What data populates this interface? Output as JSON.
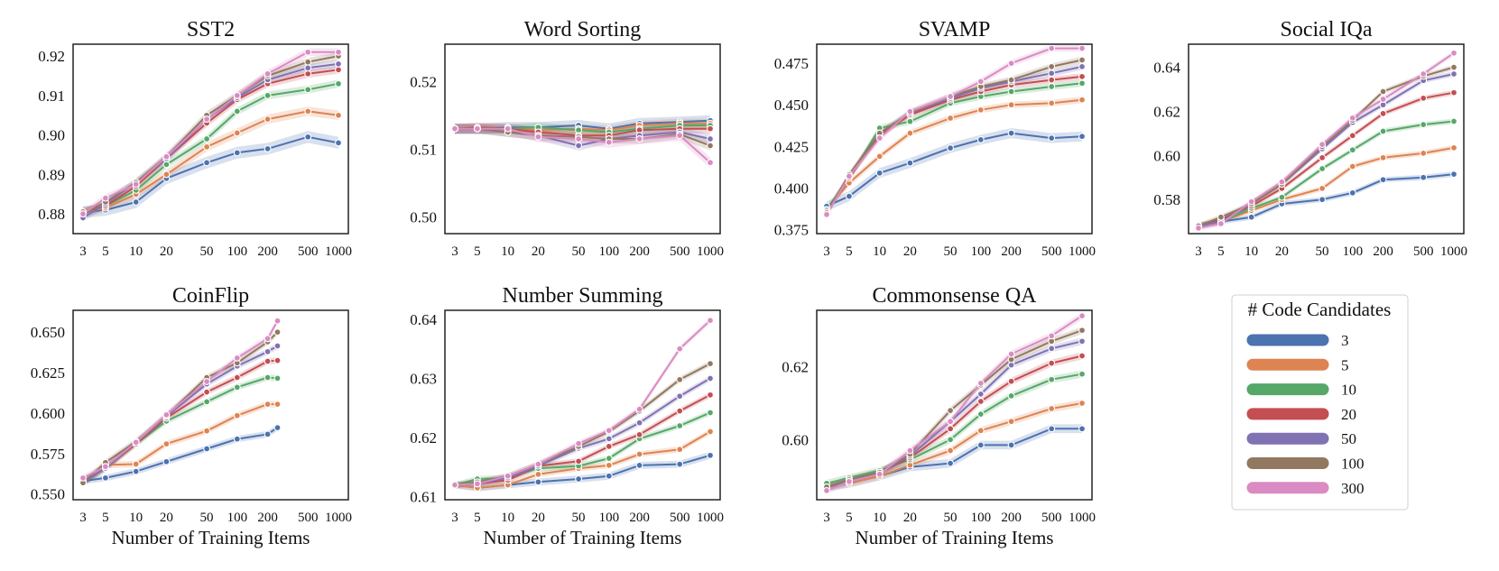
{
  "x_ticks": [
    3,
    5,
    10,
    20,
    50,
    100,
    200,
    500,
    1000
  ],
  "legend": {
    "title": "# Code Candidates",
    "entries": [
      {
        "label": "3",
        "color": "#4c72b0"
      },
      {
        "label": "5",
        "color": "#dd8452"
      },
      {
        "label": "10",
        "color": "#55a868"
      },
      {
        "label": "20",
        "color": "#c44e52"
      },
      {
        "label": "50",
        "color": "#8172b3"
      },
      {
        "label": "100",
        "color": "#937860"
      },
      {
        "label": "300",
        "color": "#da8bc3"
      }
    ]
  },
  "chart_data": [
    {
      "type": "line",
      "title": "SST2",
      "xlabel": "",
      "x_scale": "log",
      "ylim": [
        0.875,
        0.923
      ],
      "yticks": [
        0.88,
        0.89,
        0.9,
        0.91,
        0.92
      ],
      "ytick_labels": [
        "0.88",
        "0.89",
        "0.90",
        "0.91",
        "0.92"
      ],
      "x": [
        3,
        5,
        10,
        20,
        50,
        100,
        200,
        500,
        1000
      ],
      "series": [
        {
          "name": "3",
          "color": "#4c72b0",
          "values": [
            0.8805,
            0.881,
            0.883,
            0.889,
            0.893,
            0.8955,
            0.8965,
            0.8995,
            0.898
          ],
          "band": 0.0015
        },
        {
          "name": "5",
          "color": "#dd8452",
          "values": [
            0.8805,
            0.8815,
            0.885,
            0.89,
            0.897,
            0.9005,
            0.904,
            0.906,
            0.905
          ],
          "band": 0.0012
        },
        {
          "name": "10",
          "color": "#55a868",
          "values": [
            0.8805,
            0.882,
            0.886,
            0.8925,
            0.899,
            0.906,
            0.91,
            0.9115,
            0.913
          ],
          "band": 0.001
        },
        {
          "name": "20",
          "color": "#c44e52",
          "values": [
            0.8805,
            0.882,
            0.887,
            0.894,
            0.903,
            0.909,
            0.913,
            0.9155,
            0.9165
          ],
          "band": 0.001
        },
        {
          "name": "50",
          "color": "#8172b3",
          "values": [
            0.879,
            0.8825,
            0.888,
            0.894,
            0.904,
            0.9095,
            0.914,
            0.917,
            0.918
          ],
          "band": 0.001
        },
        {
          "name": "100",
          "color": "#937860",
          "values": [
            0.88,
            0.883,
            0.888,
            0.8945,
            0.905,
            0.91,
            0.915,
            0.9185,
            0.92
          ],
          "band": 0.001
        },
        {
          "name": "300",
          "color": "#da8bc3",
          "values": [
            0.88,
            0.884,
            0.8875,
            0.8945,
            0.904,
            0.91,
            0.9155,
            0.921,
            0.921
          ],
          "band": 0.001
        }
      ]
    },
    {
      "type": "line",
      "title": "Word Sorting",
      "xlabel": "",
      "x_scale": "log",
      "ylim": [
        0.4975,
        0.5255
      ],
      "yticks": [
        0.5,
        0.51,
        0.52
      ],
      "ytick_labels": [
        "0.50",
        "0.51",
        "0.52"
      ],
      "x": [
        3,
        5,
        10,
        20,
        50,
        100,
        200,
        500,
        1000
      ],
      "series": [
        {
          "name": "3",
          "color": "#4c72b0",
          "values": [
            0.513,
            0.513,
            0.5132,
            0.5132,
            0.5135,
            0.513,
            0.5138,
            0.514,
            0.5142
          ],
          "band": 0.0008
        },
        {
          "name": "5",
          "color": "#dd8452",
          "values": [
            0.513,
            0.513,
            0.513,
            0.5128,
            0.513,
            0.5128,
            0.5135,
            0.5138,
            0.5138
          ],
          "band": 0.0007
        },
        {
          "name": "10",
          "color": "#55a868",
          "values": [
            0.513,
            0.513,
            0.513,
            0.5132,
            0.5128,
            0.5125,
            0.513,
            0.5135,
            0.5135
          ],
          "band": 0.0007
        },
        {
          "name": "20",
          "color": "#c44e52",
          "values": [
            0.513,
            0.5132,
            0.513,
            0.5125,
            0.512,
            0.512,
            0.5128,
            0.513,
            0.513
          ],
          "band": 0.0007
        },
        {
          "name": "50",
          "color": "#8172b3",
          "values": [
            0.513,
            0.513,
            0.5125,
            0.512,
            0.5105,
            0.5115,
            0.512,
            0.5125,
            0.5115
          ],
          "band": 0.0007
        },
        {
          "name": "100",
          "color": "#937860",
          "values": [
            0.513,
            0.513,
            0.5125,
            0.512,
            0.5118,
            0.5115,
            0.5115,
            0.5122,
            0.5105
          ],
          "band": 0.0007
        },
        {
          "name": "300",
          "color": "#da8bc3",
          "values": [
            0.513,
            0.513,
            0.513,
            0.5118,
            0.5115,
            0.511,
            0.5115,
            0.512,
            0.508
          ],
          "band": 0.0008
        }
      ]
    },
    {
      "type": "line",
      "title": "SVAMP",
      "xlabel": "",
      "x_scale": "log",
      "ylim": [
        0.3725,
        0.4865
      ],
      "yticks": [
        0.375,
        0.4,
        0.425,
        0.45,
        0.475
      ],
      "ytick_labels": [
        "0.375",
        "0.400",
        "0.425",
        "0.450",
        "0.475"
      ],
      "x": [
        3,
        5,
        10,
        20,
        50,
        100,
        200,
        500,
        1000
      ],
      "series": [
        {
          "name": "3",
          "color": "#4c72b0",
          "values": [
            0.389,
            0.395,
            0.409,
            0.415,
            0.424,
            0.429,
            0.433,
            0.43,
            0.431
          ],
          "band": 0.003
        },
        {
          "name": "5",
          "color": "#dd8452",
          "values": [
            0.387,
            0.403,
            0.419,
            0.433,
            0.442,
            0.447,
            0.45,
            0.451,
            0.453
          ],
          "band": 0.002
        },
        {
          "name": "10",
          "color": "#55a868",
          "values": [
            0.387,
            0.406,
            0.436,
            0.44,
            0.451,
            0.455,
            0.458,
            0.461,
            0.463
          ],
          "band": 0.002
        },
        {
          "name": "20",
          "color": "#c44e52",
          "values": [
            0.386,
            0.406,
            0.432,
            0.444,
            0.453,
            0.458,
            0.462,
            0.465,
            0.467
          ],
          "band": 0.002
        },
        {
          "name": "50",
          "color": "#8172b3",
          "values": [
            0.385,
            0.407,
            0.433,
            0.445,
            0.454,
            0.46,
            0.464,
            0.469,
            0.473
          ],
          "band": 0.002
        },
        {
          "name": "100",
          "color": "#937860",
          "values": [
            0.385,
            0.408,
            0.433,
            0.445,
            0.455,
            0.461,
            0.465,
            0.473,
            0.477
          ],
          "band": 0.002
        },
        {
          "name": "300",
          "color": "#da8bc3",
          "values": [
            0.384,
            0.407,
            0.43,
            0.446,
            0.455,
            0.464,
            0.475,
            0.484,
            0.484
          ],
          "band": 0.002
        }
      ]
    },
    {
      "type": "line",
      "title": "Social IQa",
      "xlabel": "",
      "x_scale": "log",
      "ylim": [
        0.5645,
        0.6505
      ],
      "yticks": [
        0.58,
        0.6,
        0.62,
        0.64
      ],
      "ytick_labels": [
        "0.58",
        "0.60",
        "0.62",
        "0.64"
      ],
      "x": [
        3,
        5,
        10,
        20,
        50,
        100,
        200,
        500,
        1000
      ],
      "series": [
        {
          "name": "3",
          "color": "#4c72b0",
          "values": [
            0.5685,
            0.57,
            0.572,
            0.578,
            0.58,
            0.583,
            0.589,
            0.59,
            0.5915
          ],
          "band": 0.0012
        },
        {
          "name": "5",
          "color": "#dd8452",
          "values": [
            0.568,
            0.57,
            0.575,
            0.58,
            0.585,
            0.595,
            0.599,
            0.601,
            0.6035
          ],
          "band": 0.0012
        },
        {
          "name": "10",
          "color": "#55a868",
          "values": [
            0.568,
            0.57,
            0.576,
            0.581,
            0.594,
            0.6025,
            0.611,
            0.614,
            0.6155
          ],
          "band": 0.0012
        },
        {
          "name": "20",
          "color": "#c44e52",
          "values": [
            0.568,
            0.571,
            0.577,
            0.585,
            0.599,
            0.609,
            0.619,
            0.626,
            0.6285
          ],
          "band": 0.0012
        },
        {
          "name": "50",
          "color": "#8172b3",
          "values": [
            0.568,
            0.57,
            0.578,
            0.587,
            0.603,
            0.615,
            0.623,
            0.634,
            0.637
          ],
          "band": 0.0012
        },
        {
          "name": "100",
          "color": "#937860",
          "values": [
            0.568,
            0.572,
            0.578,
            0.587,
            0.604,
            0.616,
            0.629,
            0.636,
            0.64
          ],
          "band": 0.0012
        },
        {
          "name": "300",
          "color": "#da8bc3",
          "values": [
            0.567,
            0.569,
            0.579,
            0.588,
            0.605,
            0.617,
            0.6255,
            0.637,
            0.6465
          ],
          "band": 0.0012
        }
      ]
    },
    {
      "type": "line",
      "title": "CoinFlip",
      "xlabel": "Number of Training Items",
      "x_scale": "log",
      "ylim": [
        0.5465,
        0.6635
      ],
      "yticks": [
        0.55,
        0.575,
        0.6,
        0.625,
        0.65
      ],
      "ytick_labels": [
        "0.550",
        "0.575",
        "0.600",
        "0.625",
        "0.650"
      ],
      "x": [
        3,
        5,
        10,
        20,
        50,
        100,
        200,
        250
      ],
      "series": [
        {
          "name": "3",
          "color": "#4c72b0",
          "values": [
            0.558,
            0.56,
            0.564,
            0.57,
            0.578,
            0.584,
            0.587,
            0.591
          ],
          "band": 0.002
        },
        {
          "name": "5",
          "color": "#dd8452",
          "values": [
            0.557,
            0.568,
            0.5685,
            0.581,
            0.589,
            0.5985,
            0.6055,
            0.6055
          ],
          "band": 0.002
        },
        {
          "name": "10",
          "color": "#55a868",
          "values": [
            0.557,
            0.566,
            0.581,
            0.595,
            0.607,
            0.616,
            0.622,
            0.6215
          ],
          "band": 0.002
        },
        {
          "name": "20",
          "color": "#c44e52",
          "values": [
            0.557,
            0.566,
            0.581,
            0.597,
            0.613,
            0.622,
            0.632,
            0.6325
          ],
          "band": 0.002
        },
        {
          "name": "50",
          "color": "#8172b3",
          "values": [
            0.557,
            0.566,
            0.582,
            0.598,
            0.618,
            0.629,
            0.638,
            0.6415
          ],
          "band": 0.002
        },
        {
          "name": "100",
          "color": "#937860",
          "values": [
            0.557,
            0.5695,
            0.5825,
            0.5985,
            0.622,
            0.631,
            0.644,
            0.65
          ],
          "band": 0.002
        },
        {
          "name": "300",
          "color": "#da8bc3",
          "values": [
            0.56,
            0.567,
            0.582,
            0.599,
            0.6195,
            0.634,
            0.646,
            0.657
          ],
          "band": 0.002
        }
      ]
    },
    {
      "type": "line",
      "title": "Number Summing",
      "xlabel": "Number of Training Items",
      "x_scale": "log",
      "ylim": [
        0.6095,
        0.6415
      ],
      "yticks": [
        0.61,
        0.62,
        0.63,
        0.64
      ],
      "ytick_labels": [
        "0.61",
        "0.62",
        "0.63",
        "0.64"
      ],
      "x": [
        3,
        5,
        10,
        20,
        50,
        100,
        200,
        500,
        1000
      ],
      "series": [
        {
          "name": "3",
          "color": "#4c72b0",
          "values": [
            0.612,
            0.6115,
            0.612,
            0.6125,
            0.613,
            0.6135,
            0.6153,
            0.6155,
            0.617
          ],
          "band": 0.0006
        },
        {
          "name": "5",
          "color": "#dd8452",
          "values": [
            0.612,
            0.6115,
            0.612,
            0.6138,
            0.6148,
            0.6153,
            0.6172,
            0.618,
            0.621
          ],
          "band": 0.0005
        },
        {
          "name": "10",
          "color": "#55a868",
          "values": [
            0.612,
            0.613,
            0.6132,
            0.6148,
            0.6152,
            0.6165,
            0.6198,
            0.622,
            0.6242
          ],
          "band": 0.0005
        },
        {
          "name": "20",
          "color": "#c44e52",
          "values": [
            0.612,
            0.6122,
            0.6128,
            0.6152,
            0.616,
            0.6185,
            0.6205,
            0.6245,
            0.6272
          ],
          "band": 0.0005
        },
        {
          "name": "50",
          "color": "#8172b3",
          "values": [
            0.612,
            0.6122,
            0.6132,
            0.6152,
            0.6182,
            0.6198,
            0.6225,
            0.627,
            0.63
          ],
          "band": 0.0005
        },
        {
          "name": "100",
          "color": "#937860",
          "values": [
            0.612,
            0.6125,
            0.6135,
            0.6155,
            0.6185,
            0.621,
            0.6245,
            0.6298,
            0.6325
          ],
          "band": 0.0005
        },
        {
          "name": "300",
          "color": "#da8bc3",
          "values": [
            0.612,
            0.6122,
            0.6135,
            0.6155,
            0.619,
            0.6212,
            0.6248,
            0.635,
            0.6398
          ],
          "band": 0.0005
        }
      ]
    },
    {
      "type": "line",
      "title": "Commonsense QA",
      "xlabel": "Number of Training Items",
      "x_scale": "log",
      "ylim": [
        0.5835,
        0.6355
      ],
      "yticks": [
        0.6,
        0.62
      ],
      "ytick_labels": [
        "0.60",
        "0.62"
      ],
      "x": [
        3,
        5,
        10,
        20,
        50,
        100,
        200,
        500,
        1000
      ],
      "series": [
        {
          "name": "3",
          "color": "#4c72b0",
          "values": [
            0.587,
            0.588,
            0.59,
            0.5925,
            0.5935,
            0.5985,
            0.5985,
            0.603,
            0.603
          ],
          "band": 0.0012
        },
        {
          "name": "5",
          "color": "#dd8452",
          "values": [
            0.587,
            0.588,
            0.59,
            0.593,
            0.597,
            0.6025,
            0.605,
            0.6085,
            0.61
          ],
          "band": 0.001
        },
        {
          "name": "10",
          "color": "#55a868",
          "values": [
            0.588,
            0.5895,
            0.5915,
            0.5945,
            0.6,
            0.607,
            0.612,
            0.6165,
            0.618
          ],
          "band": 0.001
        },
        {
          "name": "20",
          "color": "#c44e52",
          "values": [
            0.587,
            0.589,
            0.591,
            0.595,
            0.603,
            0.6105,
            0.616,
            0.621,
            0.623
          ],
          "band": 0.001
        },
        {
          "name": "50",
          "color": "#8172b3",
          "values": [
            0.587,
            0.5885,
            0.591,
            0.5955,
            0.605,
            0.6125,
            0.6205,
            0.625,
            0.627
          ],
          "band": 0.001
        },
        {
          "name": "100",
          "color": "#937860",
          "values": [
            0.587,
            0.589,
            0.591,
            0.596,
            0.608,
            0.615,
            0.622,
            0.627,
            0.63
          ],
          "band": 0.001
        },
        {
          "name": "300",
          "color": "#da8bc3",
          "values": [
            0.586,
            0.5885,
            0.5905,
            0.597,
            0.605,
            0.6155,
            0.6235,
            0.6285,
            0.634
          ],
          "band": 0.001
        }
      ]
    }
  ]
}
